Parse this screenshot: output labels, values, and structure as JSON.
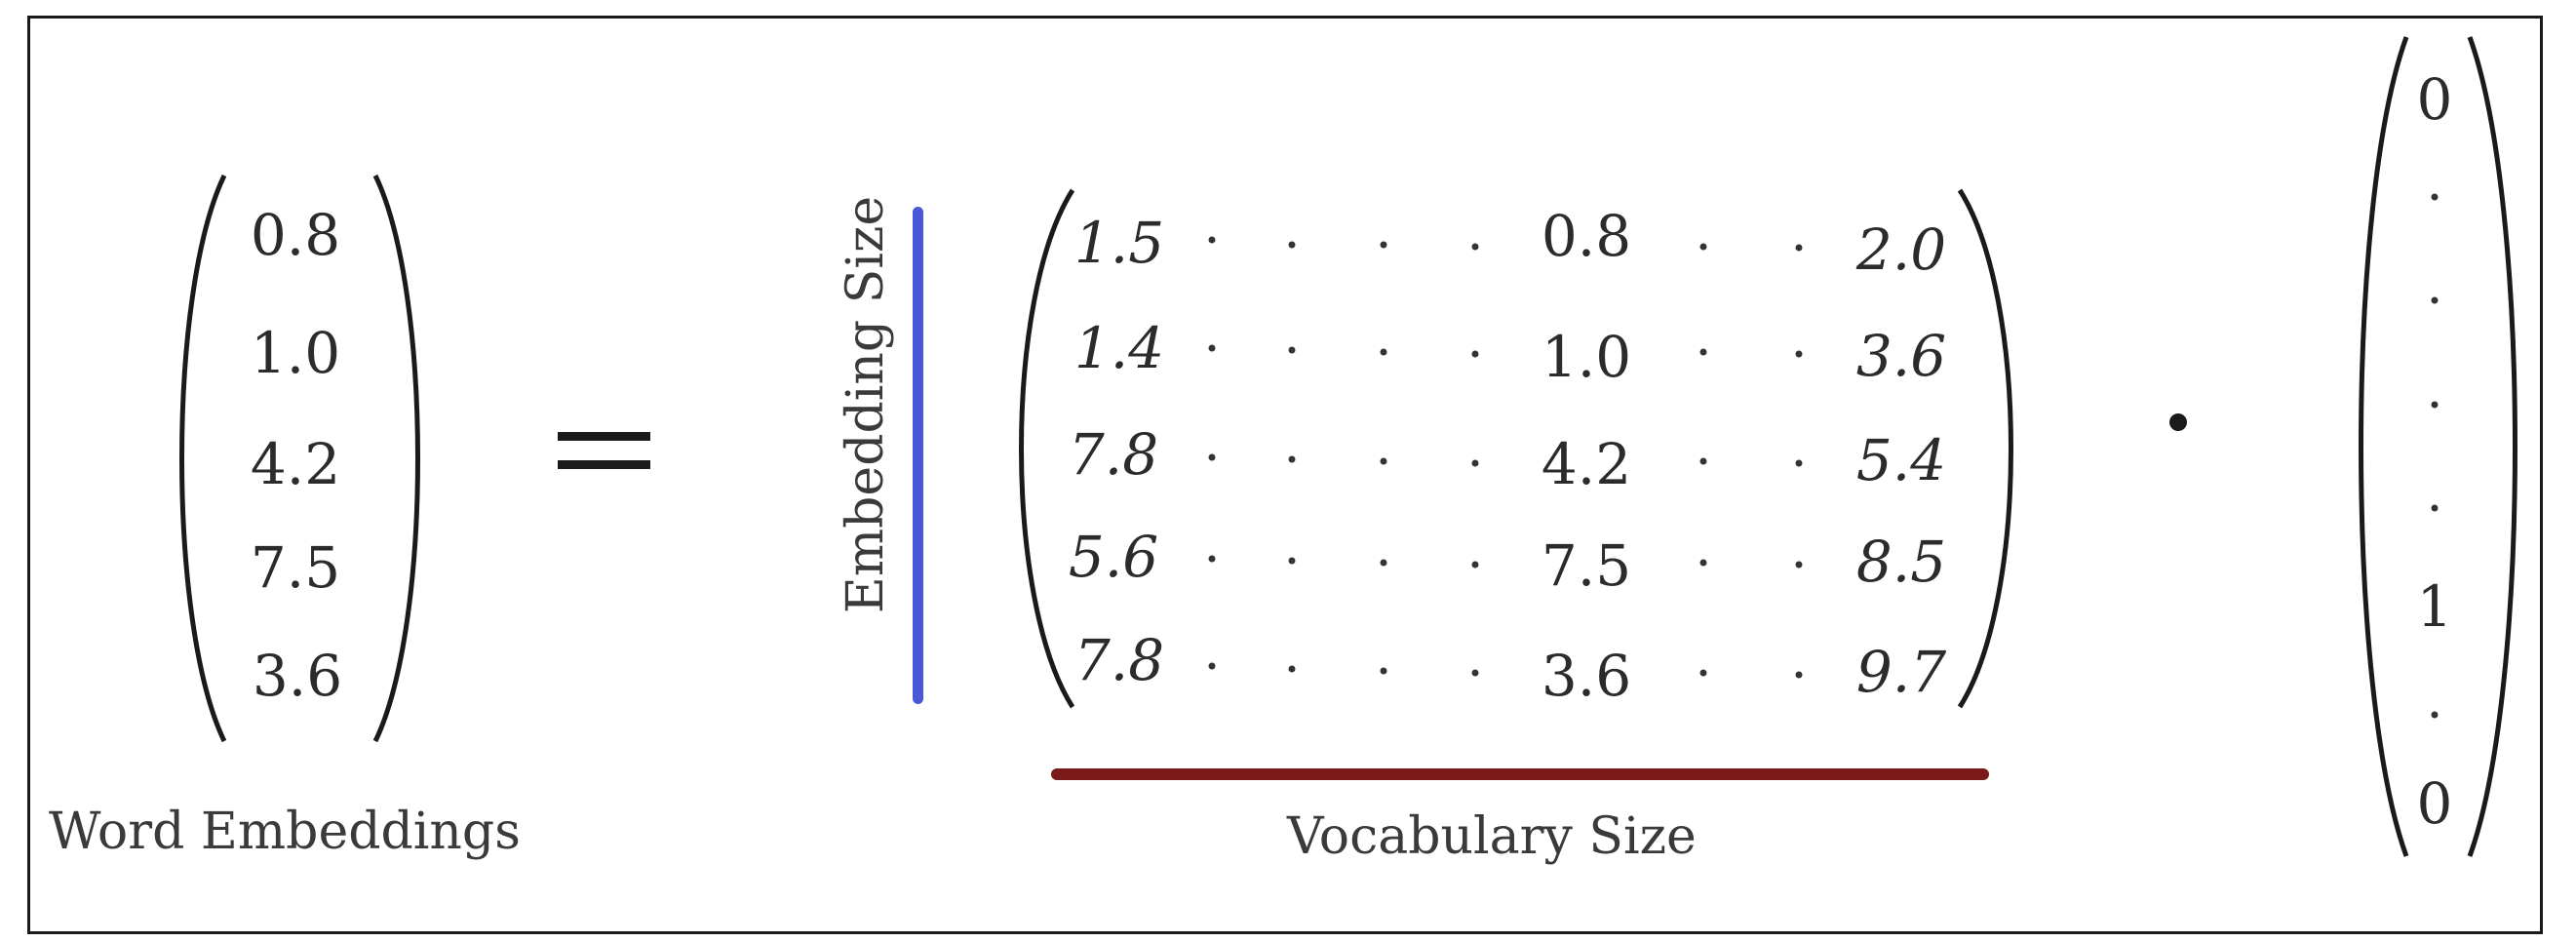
{
  "left_vector": {
    "values": [
      "0.8",
      "1.0",
      "4.2",
      "7.5",
      "3.6"
    ],
    "caption": "Word Embeddings"
  },
  "equals_sign": "=",
  "matrix": {
    "row_label": "Embedding Size",
    "col_label": "Vocabulary Size",
    "rows": [
      [
        "1.5",
        "0.8",
        "2.0"
      ],
      [
        "1.4",
        "1.0",
        "3.6"
      ],
      [
        "7.8",
        "4.2",
        "5.4"
      ],
      [
        "5.6",
        "7.5",
        "8.5"
      ],
      [
        "7.8",
        "3.6",
        "9.7"
      ]
    ],
    "row_bar_color": "#4a57d6",
    "col_bar_color": "#7a1a1a"
  },
  "dot_operator": "•",
  "one_hot": {
    "top": "0",
    "one": "1",
    "bottom": "0"
  }
}
